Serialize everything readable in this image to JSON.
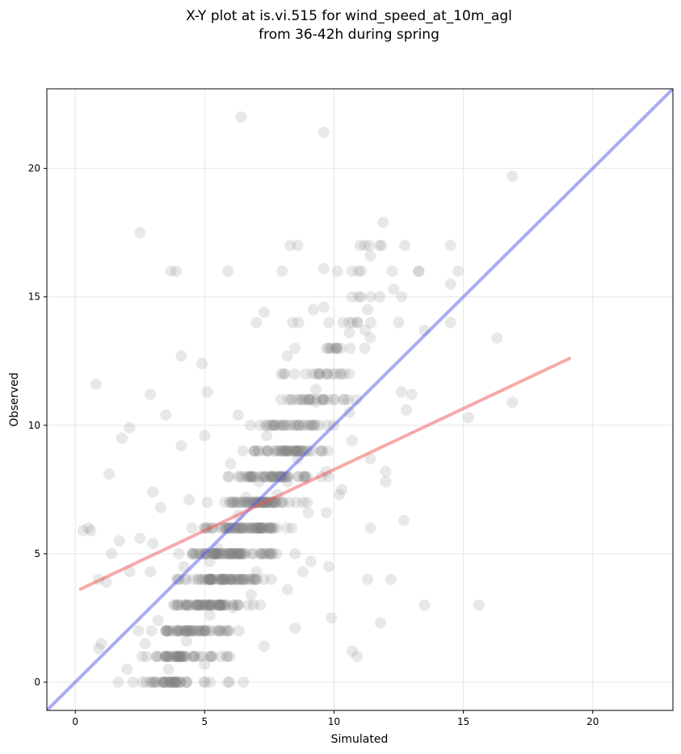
{
  "chart_data": {
    "type": "scatter",
    "title": [
      "X-Y plot at is.vi.515 for wind_speed_at_10m_agl",
      "from 36-42h during spring"
    ],
    "xlabel": "Simulated",
    "ylabel": "Observed",
    "xlim": [
      -1.1,
      23.1
    ],
    "ylim": [
      -1.1,
      23.1
    ],
    "xticks": [
      0,
      5,
      10,
      15,
      20
    ],
    "yticks": [
      0,
      5,
      10,
      15,
      20
    ],
    "grid": true,
    "point_color": "#808080",
    "identity_line": {
      "from": [
        -1.1,
        -1.1
      ],
      "to": [
        23.1,
        23.1
      ],
      "color": "#5555ee"
    },
    "fit_line": {
      "from": [
        0.2,
        3.62
      ],
      "to": [
        19.1,
        12.6
      ],
      "color": "#ee5555"
    },
    "levels": [
      0,
      1,
      2,
      3,
      4,
      5,
      6,
      7,
      8,
      9,
      10,
      11,
      12,
      13,
      14,
      15,
      16,
      17
    ],
    "points": [
      [
        6.4,
        22.0
      ],
      [
        9.6,
        21.4
      ],
      [
        16.9,
        19.7
      ],
      [
        2.5,
        17.5
      ],
      [
        11.9,
        17.9
      ],
      [
        8.3,
        17.0
      ],
      [
        8.6,
        17.0
      ],
      [
        14.5,
        17.0
      ],
      [
        11.4,
        16.6
      ],
      [
        3.7,
        16.0
      ],
      [
        3.9,
        16.0
      ],
      [
        5.9,
        16.0
      ],
      [
        8.0,
        16.0
      ],
      [
        9.6,
        16.1
      ],
      [
        10.7,
        16.0
      ],
      [
        14.8,
        16.0
      ],
      [
        14.5,
        15.5
      ],
      [
        12.3,
        15.3
      ],
      [
        7.3,
        14.4
      ],
      [
        9.2,
        14.5
      ],
      [
        9.6,
        14.6
      ],
      [
        11.3,
        14.5
      ],
      [
        11.2,
        13.7
      ],
      [
        13.5,
        13.7
      ],
      [
        16.3,
        13.4
      ],
      [
        10.6,
        13.6
      ],
      [
        11.4,
        13.4
      ],
      [
        7.0,
        14.0
      ],
      [
        8.4,
        14.0
      ],
      [
        9.8,
        14.0
      ],
      [
        10.9,
        14.0
      ],
      [
        12.5,
        14.0
      ],
      [
        14.5,
        14.0
      ],
      [
        0.8,
        11.6
      ],
      [
        2.9,
        11.2
      ],
      [
        3.5,
        10.4
      ],
      [
        9.3,
        11.4
      ],
      [
        13.0,
        11.2
      ],
      [
        15.2,
        10.3
      ],
      [
        16.9,
        10.9
      ],
      [
        8.2,
        12.7
      ],
      [
        12.6,
        11.3
      ],
      [
        12.8,
        10.6
      ],
      [
        10.7,
        9.4
      ],
      [
        11.4,
        8.7
      ],
      [
        12.0,
        7.8
      ],
      [
        12.0,
        8.2
      ],
      [
        12.7,
        6.3
      ],
      [
        11.4,
        6.0
      ],
      [
        9.7,
        6.6
      ],
      [
        9.8,
        4.5
      ],
      [
        8.8,
        4.3
      ],
      [
        9.1,
        4.7
      ],
      [
        11.3,
        4.0
      ],
      [
        10.2,
        7.3
      ],
      [
        10.3,
        7.5
      ],
      [
        12.2,
        4.0
      ],
      [
        13.5,
        3.0
      ],
      [
        15.6,
        3.0
      ],
      [
        11.8,
        2.3
      ],
      [
        10.7,
        1.2
      ],
      [
        10.9,
        1.0
      ],
      [
        0.9,
        1.3
      ],
      [
        1.0,
        1.5
      ],
      [
        2.0,
        0.5
      ],
      [
        3.6,
        0.5
      ],
      [
        5.9,
        0.0
      ],
      [
        6.5,
        0.0
      ],
      [
        0.6,
        5.9
      ],
      [
        0.9,
        4.0
      ],
      [
        1.2,
        3.9
      ],
      [
        2.1,
        4.3
      ],
      [
        2.9,
        4.3
      ],
      [
        4.2,
        4.5
      ],
      [
        5.2,
        4.7
      ],
      [
        0.3,
        5.9
      ],
      [
        0.5,
        6.0
      ],
      [
        1.4,
        5.0
      ],
      [
        1.7,
        5.5
      ],
      [
        2.5,
        5.6
      ],
      [
        3.0,
        5.4
      ],
      [
        3.3,
        6.8
      ],
      [
        4.4,
        7.1
      ],
      [
        5.5,
        5.2
      ],
      [
        6.3,
        6.5
      ],
      [
        6.6,
        7.2
      ],
      [
        7.1,
        7.8
      ],
      [
        7.8,
        7.3
      ],
      [
        8.2,
        7.8
      ],
      [
        9.0,
        6.6
      ],
      [
        4.1,
        9.2
      ],
      [
        5.0,
        9.6
      ],
      [
        6.0,
        8.5
      ],
      [
        7.4,
        9.6
      ],
      [
        8.6,
        8.7
      ],
      [
        9.7,
        8.2
      ],
      [
        3.0,
        7.4
      ],
      [
        1.3,
        8.1
      ],
      [
        1.8,
        9.5
      ],
      [
        2.1,
        9.9
      ],
      [
        5.1,
        11.3
      ],
      [
        6.3,
        10.4
      ],
      [
        4.9,
        12.4
      ],
      [
        4.1,
        12.7
      ],
      [
        9.3,
        10.9
      ],
      [
        10.6,
        10.5
      ],
      [
        5.0,
        0.7
      ],
      [
        7.3,
        1.4
      ],
      [
        8.5,
        2.1
      ],
      [
        9.9,
        2.5
      ],
      [
        4.3,
        1.6
      ],
      [
        3.2,
        2.4
      ],
      [
        6.8,
        3.4
      ],
      [
        7.0,
        4.3
      ],
      [
        8.2,
        3.6
      ],
      [
        6.1,
        2.9
      ],
      [
        5.2,
        2.6
      ],
      [
        2.7,
        1.5
      ]
    ]
  }
}
